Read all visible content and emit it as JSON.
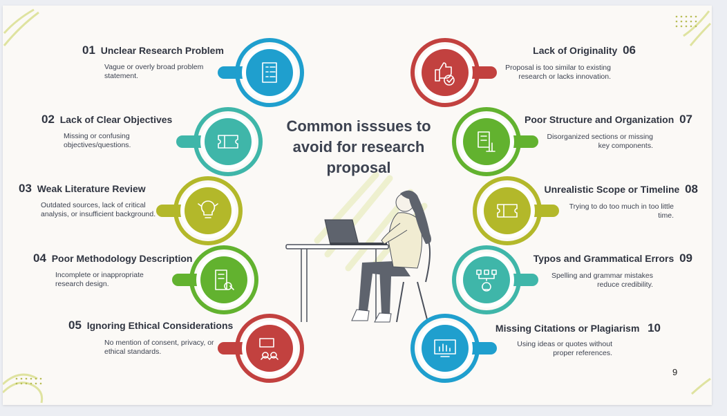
{
  "title": "Common isssues to avoid for research proposal",
  "page_number": "9",
  "items": [
    {
      "num": "01",
      "title": "Unclear Research Problem",
      "desc": "Vague or overly broad problem statement.",
      "color": "#1f9fce",
      "icon": "clipboard-checklist-icon"
    },
    {
      "num": "02",
      "title": "Lack of Clear Objectives",
      "desc": "Missing or confusing objectives/questions.",
      "color": "#3fb6a9",
      "icon": "ticket-icon"
    },
    {
      "num": "03",
      "title": "Weak Literature Review",
      "desc": "Outdated sources, lack of critical analysis, or insufficient background.",
      "color": "#b3b82a",
      "icon": "idea-bulb-icon"
    },
    {
      "num": "04",
      "title": "Poor Methodology Description",
      "desc": "Incomplete or inappropriate research design.",
      "color": "#62b22f",
      "icon": "document-search-icon"
    },
    {
      "num": "05",
      "title": "Ignoring Ethical Considerations",
      "desc": "No mention of consent, privacy, or ethical standards.",
      "color": "#c2413f",
      "icon": "people-chat-icon"
    },
    {
      "num": "06",
      "title": "Lack of Originality",
      "desc": "Proposal is too similar to existing research or lacks innovation.",
      "color": "#c2413f",
      "icon": "thumbs-up-check-icon"
    },
    {
      "num": "07",
      "title": "Poor Structure and Organization",
      "desc": "Disorganized sections or missing key components.",
      "color": "#62b22f",
      "icon": "document-hand-icon"
    },
    {
      "num": "08",
      "title": "Unrealistic Scope or Timeline",
      "desc": "Trying to do too much in too little time.",
      "color": "#b3b82a",
      "icon": "ticket-icon"
    },
    {
      "num": "09",
      "title": "Typos and Grammatical Errors",
      "desc": "Spelling and grammar mistakes reduce credibility.",
      "color": "#3fb6a9",
      "icon": "idea-network-icon"
    },
    {
      "num": "10",
      "title": "Missing Citations or Plagiarism",
      "desc": "Using ideas or quotes without proper references.",
      "color": "#1f9fce",
      "icon": "monitor-chart-icon"
    }
  ]
}
